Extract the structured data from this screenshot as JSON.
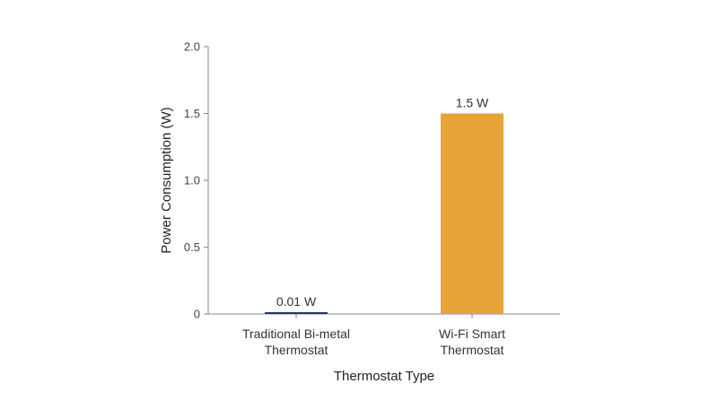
{
  "chart_data": {
    "type": "bar",
    "xlabel": "Thermostat Type",
    "ylabel": "Power Consumption (W)",
    "ylim": [
      0,
      2.0
    ],
    "yticks": [
      "0",
      "0.5",
      "1.0",
      "1.5",
      "2.0"
    ],
    "ytick_values": [
      0,
      0.5,
      1.0,
      1.5,
      2.0
    ],
    "grid": false,
    "categories": [
      [
        "Traditional Bi-metal",
        "Thermostat"
      ],
      [
        "Wi-Fi Smart",
        "Thermostat"
      ]
    ],
    "values": [
      0.01,
      1.5
    ],
    "data_labels": [
      "0.01 W",
      "1.5 W"
    ],
    "colors": [
      "#1f3a5f",
      "#e8a23a"
    ],
    "axis_color": "#888888"
  }
}
